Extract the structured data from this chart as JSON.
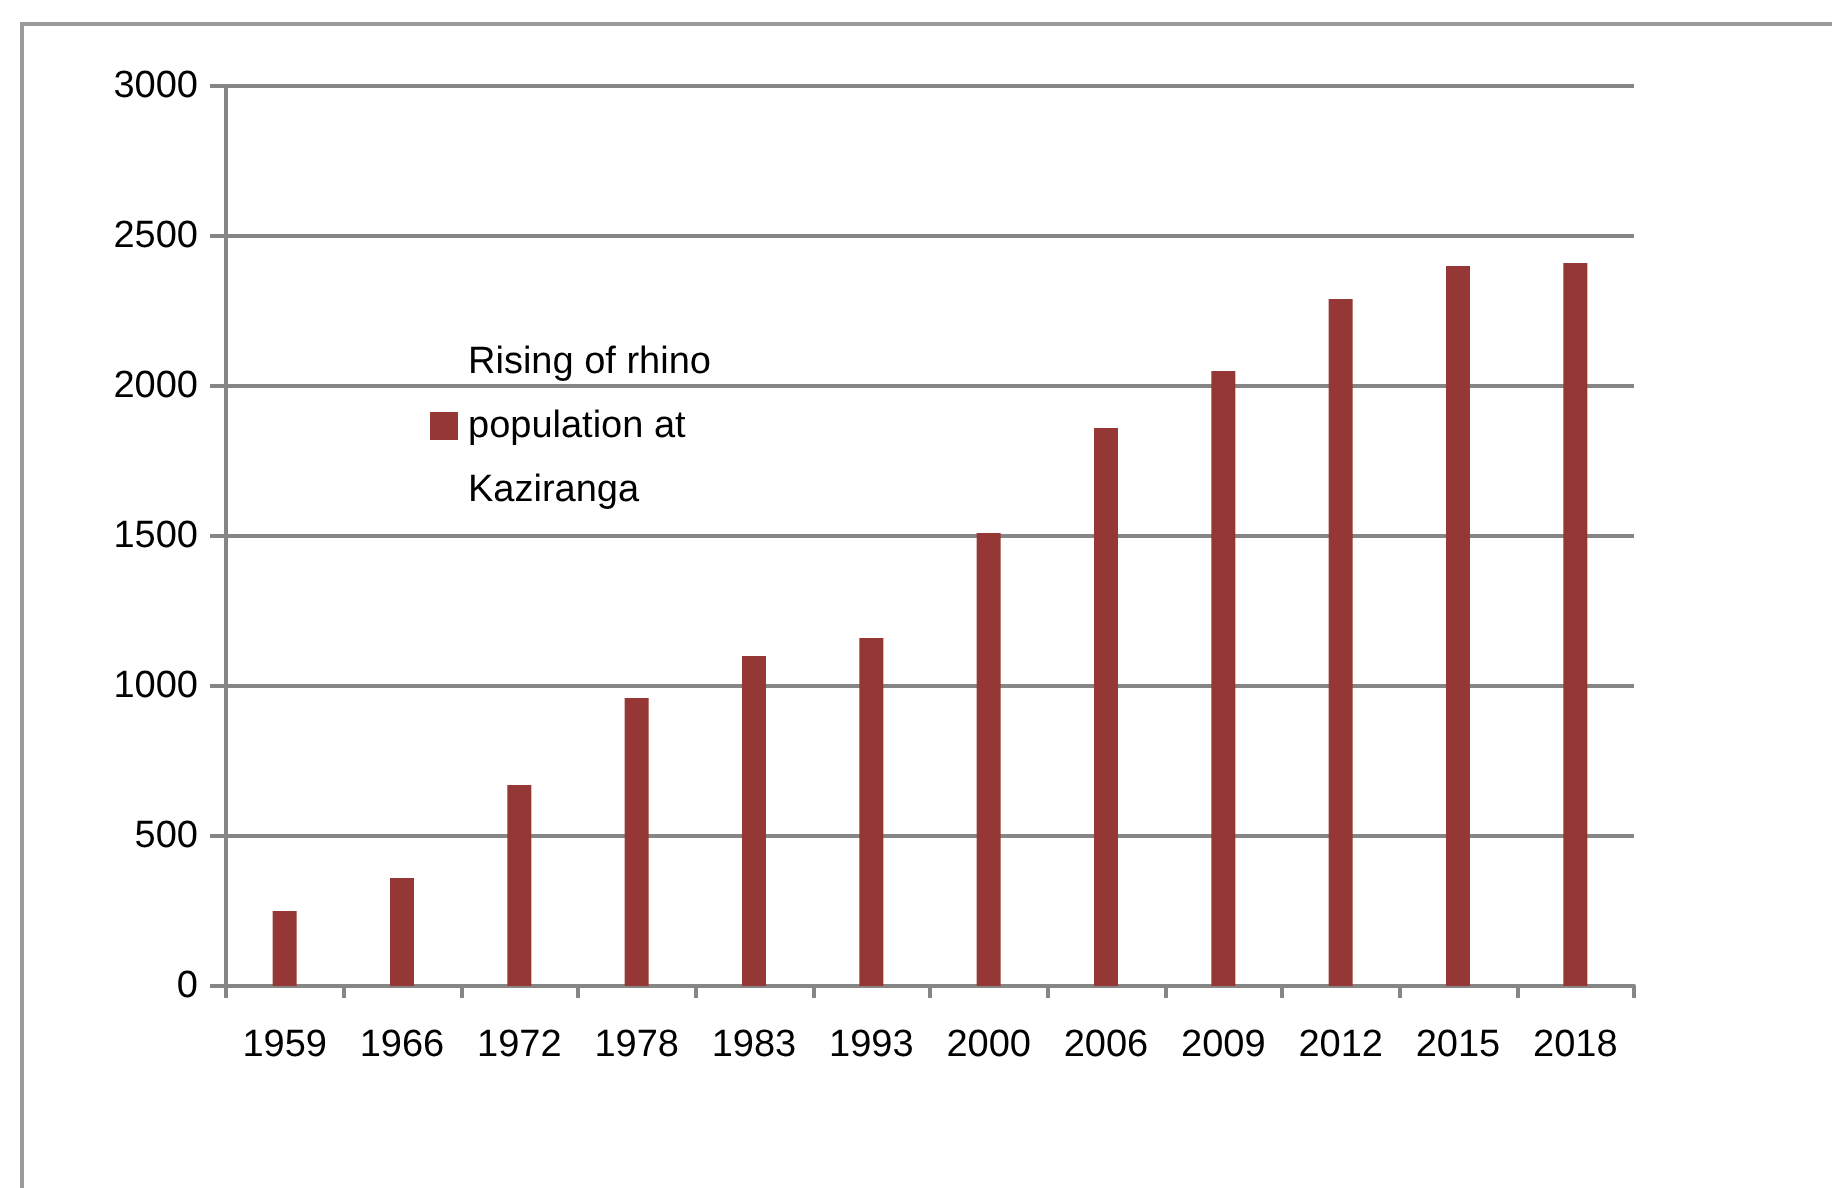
{
  "chart_data": {
    "type": "bar",
    "categories": [
      "1959",
      "1966",
      "1972",
      "1978",
      "1983",
      "1993",
      "2000",
      "2006",
      "2009",
      "2012",
      "2015",
      "2018"
    ],
    "series": [
      {
        "name": "Rising of rhino population at Kaziranga",
        "color": "#953735",
        "values": [
          250,
          360,
          670,
          960,
          1100,
          1160,
          1510,
          1860,
          2050,
          2290,
          2400,
          2410
        ]
      }
    ],
    "ylim": [
      0,
      3000
    ],
    "yticks": [
      0,
      500,
      1000,
      1500,
      2000,
      2500,
      3000
    ],
    "grid": "y",
    "legend": "top left"
  }
}
